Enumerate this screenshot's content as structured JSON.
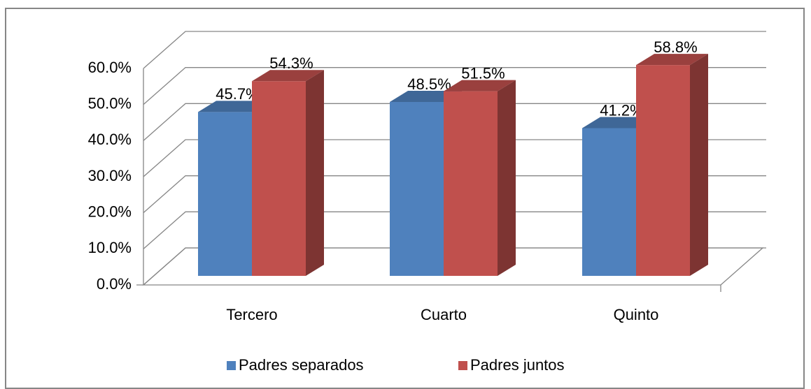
{
  "chart_data": {
    "type": "bar3d",
    "categories": [
      "Tercero",
      "Cuarto",
      "Quinto"
    ],
    "series": [
      {
        "name": "Padres separados",
        "color": "#4f81bd",
        "values": [
          45.7,
          48.5,
          41.2
        ],
        "value_labels": [
          "45.7%",
          "48.5%",
          "41.2%"
        ]
      },
      {
        "name": "Padres juntos",
        "color": "#c0504d",
        "values": [
          54.3,
          51.5,
          58.8
        ],
        "value_labels": [
          "54.3%",
          "51.5%",
          "58.8%"
        ]
      }
    ],
    "ylim": [
      0,
      60
    ],
    "yticks": [
      {
        "value": 0,
        "label": "0.0%"
      },
      {
        "value": 10,
        "label": "10.0%"
      },
      {
        "value": 20,
        "label": "20.0%"
      },
      {
        "value": 30,
        "label": "30.0%"
      },
      {
        "value": 40,
        "label": "40.0%"
      },
      {
        "value": 50,
        "label": "50.0%"
      },
      {
        "value": 60,
        "label": "60.0%"
      }
    ],
    "grid": true,
    "legend": "bottom"
  }
}
